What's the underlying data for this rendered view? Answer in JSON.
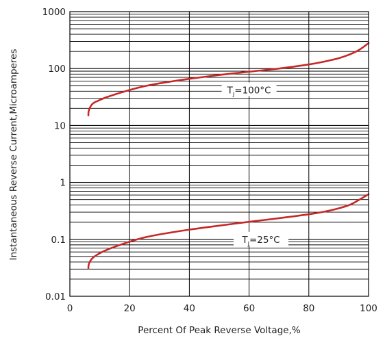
{
  "chart_data": {
    "type": "line",
    "xlabel": "Percent Of Peak Reverse Voltage,%",
    "ylabel": "Instantaneous Reverse Current,Microamperes",
    "xlim": [
      0,
      100
    ],
    "ylim": [
      0.01,
      1000
    ],
    "yscale": "log",
    "grid": "horizontal-minor-and-major",
    "x_ticks": [
      "0",
      "20",
      "40",
      "60",
      "80",
      "100"
    ],
    "y_ticks": [
      "0.01",
      "0.1",
      "1",
      "10",
      "100",
      "1000"
    ],
    "colors": {
      "curve": "#c62828",
      "grid": "#000000"
    },
    "series": [
      {
        "name": "T J=100°C",
        "annotation": {
          "prefix": "T",
          "sub": "J",
          "suffix": "=100°C",
          "x": 60,
          "y": 42
        },
        "x": [
          6.2,
          6.3,
          7,
          8,
          10,
          12,
          15,
          20,
          25,
          30,
          40,
          50,
          60,
          70,
          80,
          85,
          90,
          94,
          97,
          100
        ],
        "y": [
          15,
          18,
          22,
          25,
          28,
          31,
          35,
          42,
          49,
          55,
          66,
          77,
          88,
          100,
          118,
          132,
          152,
          180,
          215,
          280
        ]
      },
      {
        "name": "T J=25°C",
        "annotation": {
          "prefix": "T",
          "sub": "J",
          "suffix": "=25°C",
          "x": 64,
          "y": 0.1
        },
        "x": [
          6.2,
          6.3,
          7,
          8,
          10,
          12,
          15,
          20,
          25,
          30,
          40,
          50,
          60,
          70,
          80,
          85,
          90,
          94,
          97,
          100
        ],
        "y": [
          0.031,
          0.036,
          0.043,
          0.049,
          0.057,
          0.064,
          0.074,
          0.091,
          0.108,
          0.122,
          0.148,
          0.174,
          0.203,
          0.235,
          0.275,
          0.305,
          0.35,
          0.41,
          0.5,
          0.62
        ]
      }
    ]
  }
}
